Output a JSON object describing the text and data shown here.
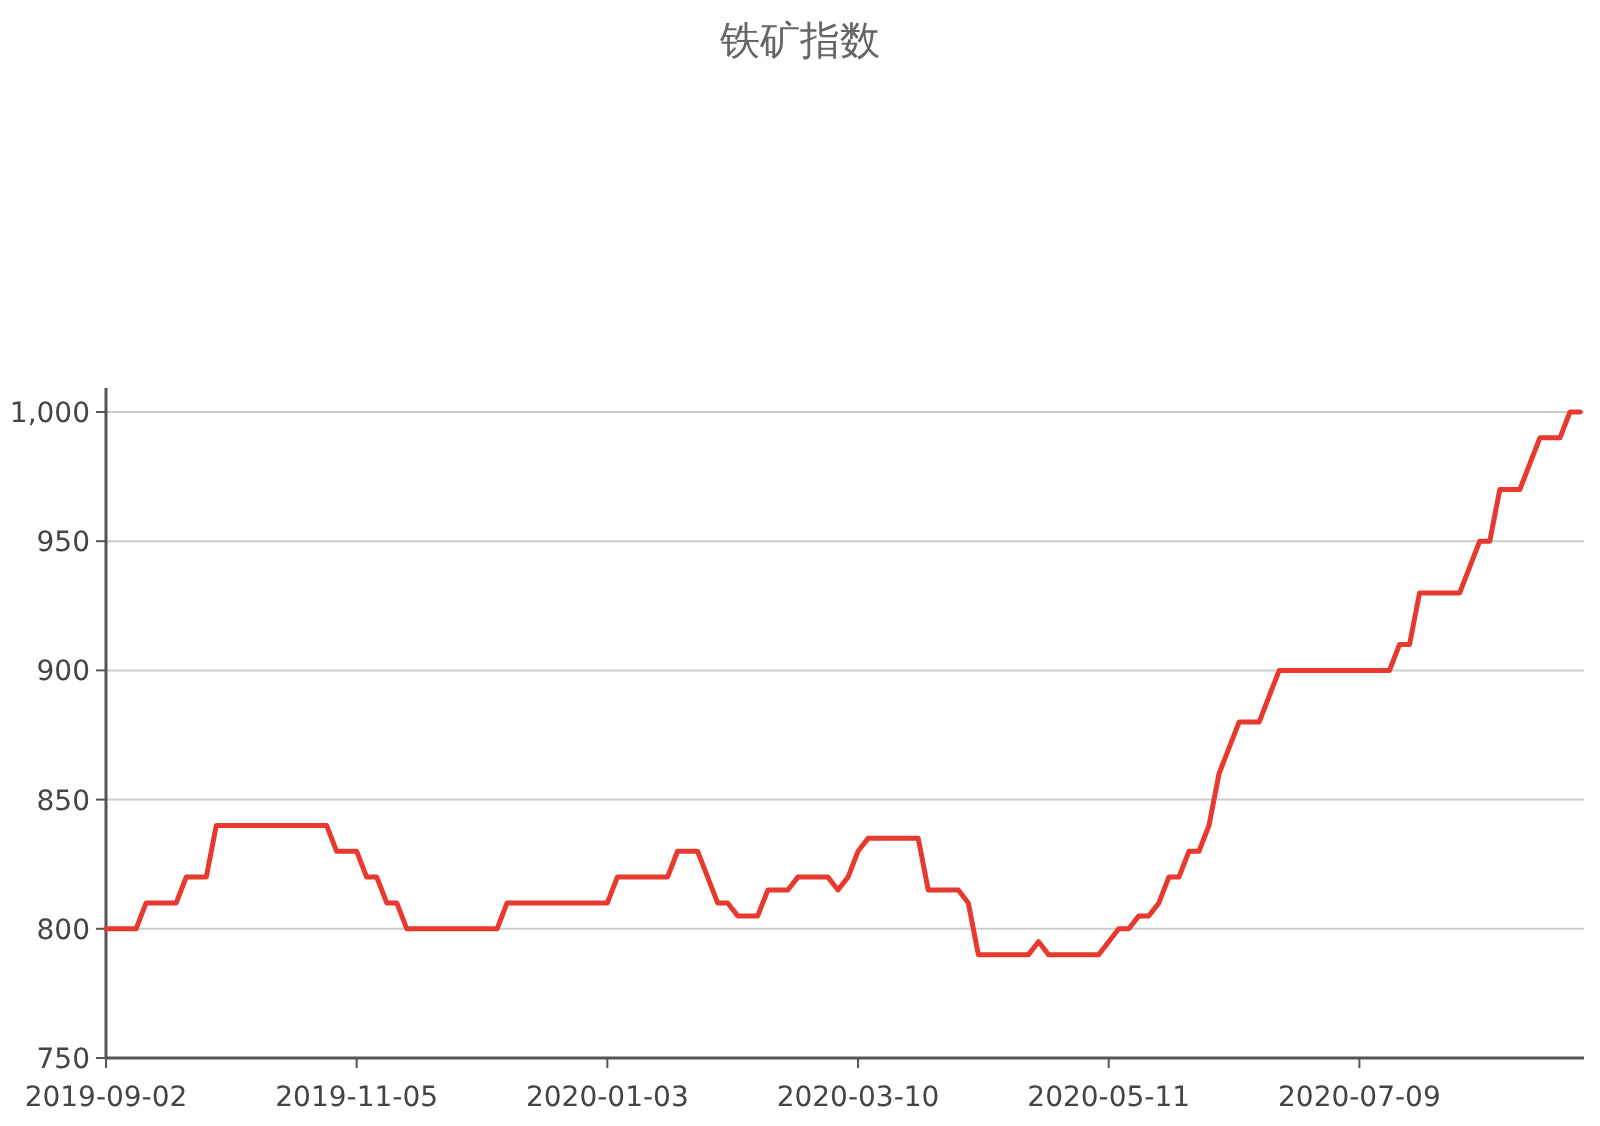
{
  "chart_data": {
    "type": "line",
    "title": "铁矿指数",
    "categories": [
      "2019-09-02",
      null,
      null,
      null,
      null,
      null,
      null,
      null,
      null,
      null,
      null,
      null,
      null,
      null,
      null,
      null,
      null,
      null,
      null,
      null,
      null,
      null,
      null,
      null,
      null,
      "2019-11-05",
      null,
      null,
      null,
      null,
      null,
      null,
      null,
      null,
      null,
      null,
      null,
      null,
      null,
      null,
      null,
      null,
      null,
      null,
      null,
      null,
      null,
      null,
      null,
      null,
      "2020-01-03",
      null,
      null,
      null,
      null,
      null,
      null,
      null,
      null,
      null,
      null,
      null,
      null,
      null,
      null,
      null,
      null,
      null,
      null,
      null,
      null,
      null,
      null,
      null,
      null,
      "2020-03-10",
      null,
      null,
      null,
      null,
      null,
      null,
      null,
      null,
      null,
      null,
      null,
      null,
      null,
      null,
      null,
      null,
      null,
      null,
      null,
      null,
      null,
      null,
      null,
      null,
      "2020-05-11",
      null,
      null,
      null,
      null,
      null,
      null,
      null,
      null,
      null,
      null,
      null,
      null,
      null,
      null,
      null,
      null,
      null,
      null,
      null,
      null,
      null,
      null,
      null,
      null,
      "2020-07-09",
      null,
      null,
      null,
      null,
      null,
      null,
      null,
      null,
      null,
      null,
      null,
      null,
      null,
      null,
      null,
      null,
      null,
      null,
      null,
      null,
      null,
      null
    ],
    "series": [
      {
        "color": "#e8392e",
        "values": [
          800,
          800,
          800,
          800,
          810,
          810,
          810,
          810,
          820,
          820,
          820,
          840,
          840,
          840,
          840,
          840,
          840,
          840,
          840,
          840,
          840,
          840,
          840,
          830,
          830,
          830,
          820,
          820,
          810,
          810,
          800,
          800,
          800,
          800,
          800,
          800,
          800,
          800,
          800,
          800,
          810,
          810,
          810,
          810,
          810,
          810,
          810,
          810,
          810,
          810,
          810,
          820,
          820,
          820,
          820,
          820,
          820,
          830,
          830,
          830,
          820,
          810,
          810,
          805,
          805,
          805,
          815,
          815,
          815,
          820,
          820,
          820,
          820,
          815,
          820,
          830,
          835,
          835,
          835,
          835,
          835,
          835,
          815,
          815,
          815,
          815,
          810,
          790,
          790,
          790,
          790,
          790,
          790,
          795,
          790,
          790,
          790,
          790,
          790,
          790,
          795,
          800,
          800,
          805,
          805,
          810,
          820,
          820,
          830,
          830,
          840,
          860,
          870,
          880,
          880,
          880,
          890,
          900,
          900,
          900,
          900,
          900,
          900,
          900,
          900,
          900,
          900,
          900,
          900,
          910,
          910,
          930,
          930,
          930,
          930,
          930,
          940,
          950,
          950,
          970,
          970,
          970,
          980,
          990,
          990,
          990,
          1000,
          1000
        ]
      }
    ],
    "ylim": [
      750,
      1000
    ],
    "yticks": [
      750,
      800,
      850,
      900,
      950,
      {
        "value": 1000,
        "label": "1,000"
      }
    ],
    "grid": "y",
    "line_style": "solid"
  }
}
